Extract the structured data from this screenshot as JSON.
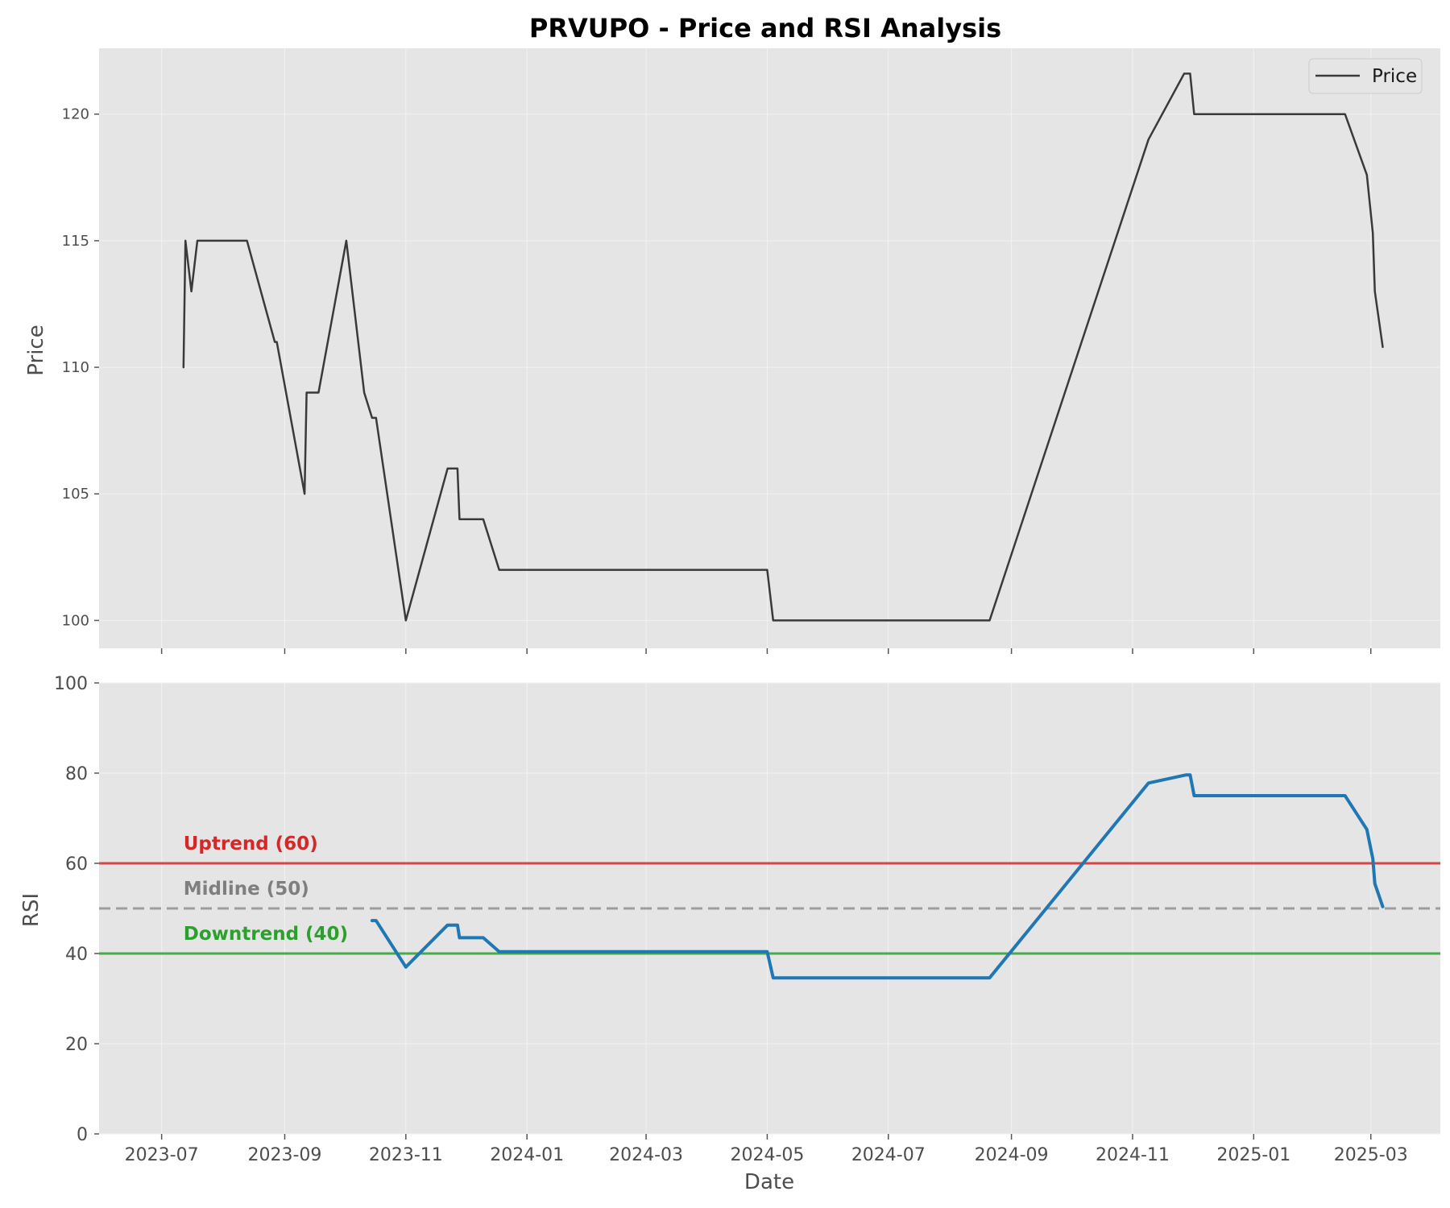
{
  "chart_data": [
    {
      "type": "line",
      "panel": "price",
      "title": "PRVUPO - Price and RSI Analysis",
      "ylabel": "Price",
      "ylim": [
        98.9,
        122.6
      ],
      "yticks": [
        100,
        105,
        110,
        115,
        120
      ],
      "grid": true,
      "legend": {
        "position": "top-right",
        "entries": [
          "Price"
        ]
      },
      "series": [
        {
          "name": "Price",
          "color": "#3a3a3a",
          "points": [
            [
              "2023-07-12",
              110
            ],
            [
              "2023-07-13",
              115
            ],
            [
              "2023-07-16",
              113
            ],
            [
              "2023-07-19",
              115
            ],
            [
              "2023-08-13",
              115
            ],
            [
              "2023-08-27",
              111
            ],
            [
              "2023-08-28",
              111
            ],
            [
              "2023-09-11",
              105
            ],
            [
              "2023-09-12",
              109
            ],
            [
              "2023-09-18",
              109
            ],
            [
              "2023-10-02",
              115
            ],
            [
              "2023-10-11",
              109
            ],
            [
              "2023-10-15",
              108
            ],
            [
              "2023-10-17",
              108
            ],
            [
              "2023-11-01",
              100
            ],
            [
              "2023-11-22",
              106
            ],
            [
              "2023-11-27",
              106
            ],
            [
              "2023-11-28",
              104
            ],
            [
              "2023-12-10",
              104
            ],
            [
              "2023-12-18",
              102
            ],
            [
              "2024-05-01",
              102
            ],
            [
              "2024-05-04",
              100
            ],
            [
              "2024-08-21",
              100
            ],
            [
              "2024-11-09",
              119
            ],
            [
              "2024-11-27",
              121.6
            ],
            [
              "2024-11-30",
              121.6
            ],
            [
              "2024-12-02",
              120
            ],
            [
              "2025-02-16",
              120
            ],
            [
              "2025-02-27",
              117.6
            ],
            [
              "2025-03-02",
              115.3
            ],
            [
              "2025-03-03",
              113
            ],
            [
              "2025-03-07",
              110.8
            ]
          ]
        }
      ]
    },
    {
      "type": "line",
      "panel": "rsi",
      "xlabel": "Date",
      "ylabel": "RSI",
      "ylim": [
        0,
        100
      ],
      "yticks": [
        0,
        20,
        40,
        60,
        80,
        100
      ],
      "xticks": [
        "2023-07",
        "2023-09",
        "2023-11",
        "2024-01",
        "2024-03",
        "2024-05",
        "2024-07",
        "2024-09",
        "2024-11",
        "2025-01",
        "2025-03"
      ],
      "grid": true,
      "reference_lines": [
        {
          "label": "Uptrend (60)",
          "value": 60,
          "color": "#d62728",
          "style": "solid"
        },
        {
          "label": "Midline (50)",
          "value": 50,
          "color": "#7f7f7f",
          "style": "dashed"
        },
        {
          "label": "Downtrend (40)",
          "value": 40,
          "color": "#2ca02c",
          "style": "solid"
        }
      ],
      "series": [
        {
          "color": "#1f77b4",
          "points": [
            [
              "2023-10-15",
              47.3
            ],
            [
              "2023-10-17",
              47.3
            ],
            [
              "2023-11-01",
              37.0
            ],
            [
              "2023-11-22",
              46.3
            ],
            [
              "2023-11-27",
              46.3
            ],
            [
              "2023-11-28",
              43.5
            ],
            [
              "2023-12-10",
              43.5
            ],
            [
              "2023-12-18",
              40.4
            ],
            [
              "2024-05-01",
              40.4
            ],
            [
              "2024-05-04",
              34.6
            ],
            [
              "2024-08-21",
              34.6
            ],
            [
              "2024-11-09",
              77.8
            ],
            [
              "2024-11-28",
              79.6
            ],
            [
              "2024-11-30",
              79.6
            ],
            [
              "2024-12-02",
              75.0
            ],
            [
              "2025-02-16",
              75.0
            ],
            [
              "2025-02-27",
              67.5
            ],
            [
              "2025-03-02",
              61.0
            ],
            [
              "2025-03-03",
              55.5
            ],
            [
              "2025-03-07",
              50.4
            ]
          ]
        }
      ]
    }
  ]
}
